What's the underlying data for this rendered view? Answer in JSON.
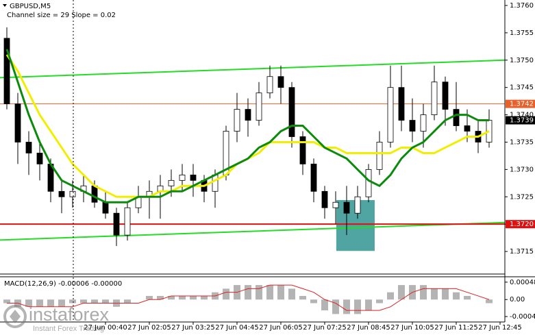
{
  "chart_data": [
    {
      "type": "candlestick",
      "title": "GBPUSD,M5",
      "subtitle": "Channel size = 29 Slope = 0.02",
      "x": [
        0,
        1,
        2,
        3,
        4,
        5,
        6,
        7,
        8,
        9,
        10,
        11,
        12,
        13,
        14,
        15,
        16,
        17,
        18,
        19,
        20,
        21,
        22,
        23,
        24,
        25,
        26,
        27,
        28,
        29,
        30,
        31,
        32,
        33,
        34,
        35,
        36,
        37,
        38,
        39,
        40,
        41,
        42,
        43,
        44
      ],
      "open": [
        1.3754,
        1.3742,
        1.3735,
        1.3733,
        1.3731,
        1.3726,
        1.3725,
        1.3726,
        1.3727,
        1.3724,
        1.3722,
        1.3718,
        1.3723,
        1.3725,
        1.3726,
        1.3727,
        1.3728,
        1.3729,
        1.3728,
        1.3726,
        1.3729,
        1.3737,
        1.3741,
        1.3739,
        1.3744,
        1.3747,
        1.3745,
        1.3736,
        1.3731,
        1.3726,
        1.3723,
        1.3724,
        1.3722,
        1.3725,
        1.373,
        1.3735,
        1.3745,
        1.3739,
        1.3737,
        1.374,
        1.3746,
        1.3741,
        1.3738,
        1.3737,
        1.3735
      ],
      "high": [
        1.3756,
        1.3744,
        1.3737,
        1.3735,
        1.3732,
        1.3728,
        1.3728,
        1.3729,
        1.3728,
        1.3726,
        1.3723,
        1.3724,
        1.3727,
        1.3728,
        1.3729,
        1.373,
        1.3731,
        1.3731,
        1.3729,
        1.373,
        1.3738,
        1.3744,
        1.3743,
        1.3746,
        1.3749,
        1.3749,
        1.3746,
        1.3737,
        1.3732,
        1.3727,
        1.3726,
        1.3727,
        1.3727,
        1.3731,
        1.3737,
        1.3749,
        1.3749,
        1.3743,
        1.3742,
        1.3749,
        1.3747,
        1.3746,
        1.3741,
        1.3739,
        1.3741
      ],
      "low": [
        1.3741,
        1.3731,
        1.3729,
        1.3728,
        1.3724,
        1.3722,
        1.3723,
        1.3724,
        1.3723,
        1.3721,
        1.3716,
        1.3717,
        1.3722,
        1.3721,
        1.3721,
        1.3725,
        1.3726,
        1.3725,
        1.3724,
        1.3723,
        1.3728,
        1.3735,
        1.3736,
        1.3738,
        1.3743,
        1.3742,
        1.3734,
        1.3729,
        1.3724,
        1.3721,
        1.372,
        1.3718,
        1.3721,
        1.3724,
        1.3729,
        1.3734,
        1.3737,
        1.3735,
        1.3734,
        1.3739,
        1.3738,
        1.3737,
        1.3735,
        1.3733,
        1.3734
      ],
      "close": [
        1.3742,
        1.3735,
        1.3733,
        1.3731,
        1.3726,
        1.3725,
        1.3726,
        1.3727,
        1.3724,
        1.3722,
        1.3718,
        1.3723,
        1.3725,
        1.3726,
        1.3727,
        1.3728,
        1.3729,
        1.3728,
        1.3726,
        1.3729,
        1.3737,
        1.3741,
        1.3739,
        1.3744,
        1.3747,
        1.3745,
        1.3736,
        1.3731,
        1.3726,
        1.3723,
        1.3724,
        1.3722,
        1.3725,
        1.373,
        1.3735,
        1.3745,
        1.3739,
        1.3737,
        1.374,
        1.3746,
        1.3741,
        1.3738,
        1.3737,
        1.3735,
        1.3739
      ],
      "lines": [
        {
          "color": "#f2ee00",
          "values": [
            1.3751,
            1.3748,
            1.3744,
            1.374,
            1.3737,
            1.3734,
            1.3731,
            1.3729,
            1.3727,
            1.3726,
            1.3725,
            1.3725,
            1.3725,
            1.3725,
            1.3726,
            1.3726,
            1.3727,
            1.3727,
            1.3727,
            1.3728,
            1.3729,
            1.3731,
            1.3732,
            1.3733,
            1.3735,
            1.3735,
            1.3735,
            1.3735,
            1.3735,
            1.3734,
            1.3734,
            1.3733,
            1.3733,
            1.3733,
            1.3733,
            1.3733,
            1.3734,
            1.3734,
            1.3733,
            1.3733,
            1.3734,
            1.3735,
            1.3736,
            1.3736,
            1.3737
          ]
        },
        {
          "color": "#0b8a0b",
          "values": [
            1.3752,
            1.3746,
            1.374,
            1.3735,
            1.3731,
            1.3728,
            1.3727,
            1.3726,
            1.3725,
            1.3724,
            1.3724,
            1.3724,
            1.3725,
            1.3725,
            1.3725,
            1.3726,
            1.3726,
            1.3727,
            1.3728,
            1.3729,
            1.373,
            1.3731,
            1.3732,
            1.3734,
            1.3735,
            1.3737,
            1.3738,
            1.3738,
            1.3736,
            1.3734,
            1.3733,
            1.3732,
            1.373,
            1.3728,
            1.3727,
            1.3729,
            1.3732,
            1.3734,
            1.3735,
            1.3737,
            1.3739,
            1.374,
            1.374,
            1.3739,
            1.3739
          ]
        }
      ],
      "trend_lines": [
        {
          "color": "#22dd22",
          "start": 1.37468,
          "end": 1.375
        },
        {
          "color": "#22dd22",
          "start": 1.37171,
          "end": 1.37203
        }
      ],
      "levels": [
        {
          "value": 1.3742,
          "label": "1.3742",
          "color": "#e8602a"
        },
        {
          "value": 1.372,
          "label": "1.3720",
          "color": "#e01010"
        }
      ],
      "zone": {
        "x": [
          30.06,
          33.56
        ],
        "y": [
          1.37151,
          1.37244
        ],
        "color": "#3d9a98"
      },
      "xlim": [
        -0.625,
        45.4375
      ],
      "xticks": [
        {
          "value": 9,
          "label": "27 Jun 00:40"
        },
        {
          "value": 13,
          "label": "27 Jun 02:05"
        },
        {
          "value": 17,
          "label": "27 Jun 03:25"
        },
        {
          "value": 21,
          "label": "27 Jun 04:45"
        },
        {
          "value": 25,
          "label": "27 Jun 06:05"
        },
        {
          "value": 29,
          "label": "27 Jun 07:25"
        },
        {
          "value": 33,
          "label": "27 Jun 08:45"
        },
        {
          "value": 37,
          "label": "27 Jun 10:05"
        },
        {
          "value": 41,
          "label": "27 Jun 11:25"
        },
        {
          "value": 45,
          "label": "27 Jun 12:45"
        }
      ],
      "ylim": [
        1.3711,
        1.3761
      ],
      "yticks": [
        {
          "value": 1.376,
          "label": "1.3760"
        },
        {
          "value": 1.3755,
          "label": "1.3755"
        },
        {
          "value": 1.375,
          "label": "1.3750"
        },
        {
          "value": 1.3745,
          "label": "1.3745"
        },
        {
          "value": 1.374,
          "label": "1.3740"
        },
        {
          "value": 1.3735,
          "label": "1.3735"
        },
        {
          "value": 1.373,
          "label": "1.3730"
        },
        {
          "value": 1.3725,
          "label": "1.3725"
        },
        {
          "value": 1.372,
          "label": "1.3720"
        },
        {
          "value": 1.3715,
          "label": "1.3715"
        }
      ]
    },
    {
      "type": "macd",
      "title": "MACD(12,26,9) -0.00006 -0.00000",
      "histogram": [
        -0.0001,
        -0.0002,
        -0.0002,
        -0.0002,
        -0.0002,
        -0.0002,
        -0.0001,
        -0.0001,
        -0.0001,
        -0.0001,
        -0.0002,
        -0.0001,
        0,
        0.0001,
        0.0001,
        0.0001,
        0.0001,
        0.0001,
        0.0001,
        0.0002,
        0.0003,
        0.0004,
        0.0004,
        0.0004,
        0.0004,
        0.0004,
        0.0003,
        0.0001,
        -0.0001,
        -0.0003,
        -0.0004,
        -0.0004,
        -0.0004,
        -0.0003,
        -0.0001,
        0.0002,
        0.0004,
        0.0004,
        0.0004,
        0.0003,
        0.0003,
        0.0002,
        0.0001,
        0,
        -0.0001
      ],
      "signal": [
        -0.0001,
        -0.0001,
        -0.0002,
        -0.0002,
        -0.0002,
        -0.0002,
        -0.0002,
        -0.0001,
        -0.0001,
        -0.0001,
        -0.0001,
        -0.0001,
        -0.0001,
        0,
        0,
        0.0001,
        0.0001,
        0.0001,
        0.0001,
        0.0001,
        0.0002,
        0.0002,
        0.0003,
        0.0003,
        0.0004,
        0.0004,
        0.0004,
        0.0003,
        0.0002,
        0,
        -0.0001,
        -0.0003,
        -0.0003,
        -0.0003,
        -0.0003,
        -0.0002,
        0,
        0.0002,
        0.0003,
        0.0003,
        0.0003,
        0.0003,
        0.0002,
        0.0001,
        0
      ],
      "histogram_color": "#b4b4b4",
      "signal_color": "#e02020",
      "ylim": [
        -0.00062,
        0.00061
      ],
      "yticks": [
        0.00048,
        {
          "value": 0,
          "label": "0.00"
        },
        -0.00047
      ]
    }
  ],
  "brand": {
    "name": "instaforex",
    "tagline": "Instant Forex Trading"
  }
}
